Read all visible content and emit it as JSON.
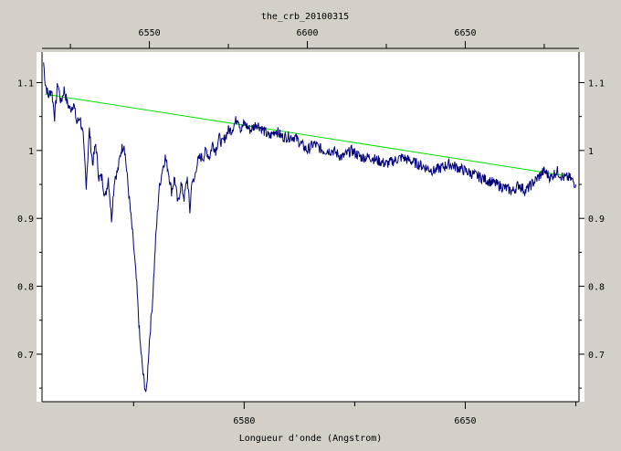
{
  "chart_data": {
    "type": "line",
    "title": "the_crb_20100315",
    "xlabel": "Longueur d'onde (Angstrom)",
    "ylabel": "",
    "bottom_axis": {
      "xlim": [
        6516,
        6686
      ],
      "ticks": [
        6580,
        6650
      ],
      "tick_labels": [
        "6580",
        "6650"
      ]
    },
    "top_axis": {
      "xlim": [
        6516,
        6686
      ],
      "ticks": [
        6550,
        6600,
        6650
      ],
      "tick_labels": [
        "6550",
        "6600",
        "6650"
      ]
    },
    "ylim": [
      0.63,
      1.145
    ],
    "y_ticks": [
      0.7,
      0.8,
      0.9,
      1,
      1.1
    ],
    "y_tick_labels": [
      "0.7",
      "0.8",
      "0.9",
      "1",
      "1.1"
    ],
    "grid": false,
    "colors": {
      "spectrum": "#00007a",
      "continuum": "#00e000",
      "plot_bg": "#ffffff",
      "frame_bg": "#d4d0c8"
    },
    "series": [
      {
        "role": "spectrum",
        "x": [
          6516.5,
          6517.0,
          6518.0,
          6519.0,
          6520.0,
          6521.0,
          6522.0,
          6523.0,
          6524.0,
          6525.0,
          6526.0,
          6527.0,
          6528.0,
          6529.0,
          6530.0,
          6531.0,
          6532.0,
          6533.0,
          6534.0,
          6535.0,
          6536.0,
          6537.0,
          6538.0,
          6539.0,
          6540.0,
          6541.0,
          6542.0,
          6543.0,
          6544.0,
          6545.0,
          6546.0,
          6547.0,
          6548.0,
          6549.0,
          6550.0,
          6551.0,
          6552.0,
          6553.0,
          6554.0,
          6555.0,
          6556.0,
          6557.0,
          6558.0,
          6559.0,
          6560.0,
          6561.0,
          6562.0,
          6562.8,
          6563.5,
          6564.0,
          6565.0,
          6566.0,
          6567.0,
          6568.0,
          6569.0,
          6570.0,
          6571.0,
          6572.0,
          6573.0,
          6574.0,
          6575.0,
          6576.0,
          6577.0,
          6578.0,
          6579.0,
          6580.0,
          6582.0,
          6584.0,
          6586.0,
          6588.0,
          6590.0,
          6592.0,
          6594.0,
          6596.0,
          6598.0,
          6600.0,
          6602.0,
          6605.0,
          6608.0,
          6611.0,
          6614.0,
          6617.0,
          6620.0,
          6625.0,
          6630.0,
          6635.0,
          6640.0,
          6645.0,
          6650.0,
          6655.0,
          6660.0,
          6665.0,
          6667.0,
          6669.0,
          6671.0,
          6673.0,
          6675.0,
          6677.0,
          6679.0,
          6681.0,
          6683.0,
          6685.0
        ],
        "y": [
          1.13,
          1.1,
          1.08,
          1.09,
          1.05,
          1.1,
          1.07,
          1.09,
          1.07,
          1.06,
          1.07,
          1.04,
          1.05,
          1.02,
          0.95,
          1.03,
          0.98,
          1.01,
          0.96,
          0.96,
          0.93,
          0.96,
          0.9,
          0.96,
          0.97,
          1.0,
          1.01,
          0.96,
          0.91,
          0.86,
          0.8,
          0.72,
          0.67,
          0.64,
          0.72,
          0.78,
          0.87,
          0.94,
          0.97,
          0.99,
          0.97,
          0.94,
          0.96,
          0.92,
          0.95,
          0.93,
          0.96,
          0.91,
          0.96,
          0.95,
          0.98,
          0.99,
          0.99,
          1.0,
          0.99,
          1.01,
          1.0,
          1.02,
          1.01,
          1.02,
          1.03,
          1.03,
          1.04,
          1.05,
          1.03,
          1.04,
          1.03,
          1.04,
          1.03,
          1.02,
          1.03,
          1.02,
          1.02,
          1.02,
          1.01,
          1.0,
          1.01,
          1.0,
          1.0,
          0.99,
          1.0,
          0.99,
          0.99,
          0.98,
          0.99,
          0.98,
          0.97,
          0.98,
          0.97,
          0.96,
          0.95,
          0.94,
          0.95,
          0.94,
          0.95,
          0.96,
          0.97,
          0.96,
          0.97,
          0.96,
          0.96,
          0.95
        ]
      },
      {
        "role": "continuum",
        "x": [
          6517,
          6683
        ],
        "y": [
          1.083,
          0.962
        ]
      }
    ]
  }
}
